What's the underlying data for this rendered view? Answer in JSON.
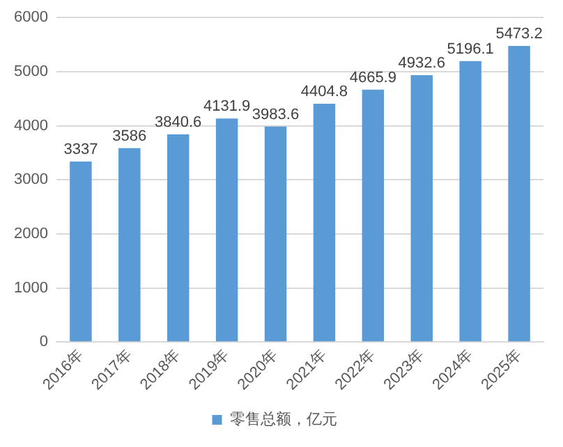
{
  "chart_data": {
    "type": "bar",
    "categories": [
      "2016年",
      "2017年",
      "2018年",
      "2019年",
      "2020年",
      "2021年",
      "2022年",
      "2023年",
      "2024年",
      "2025年"
    ],
    "series": [
      {
        "name": "零售总额，亿元",
        "color": "#5b9bd5",
        "values": [
          3337,
          3586,
          3840.6,
          4131.9,
          3983.6,
          4404.8,
          4665.9,
          4932.6,
          5196.1,
          5473.2
        ]
      }
    ],
    "ylim": [
      0,
      6000
    ],
    "yticks": [
      0,
      1000,
      2000,
      3000,
      4000,
      5000,
      6000
    ],
    "grid": "y",
    "legend": "bottom",
    "data_labels": true
  }
}
